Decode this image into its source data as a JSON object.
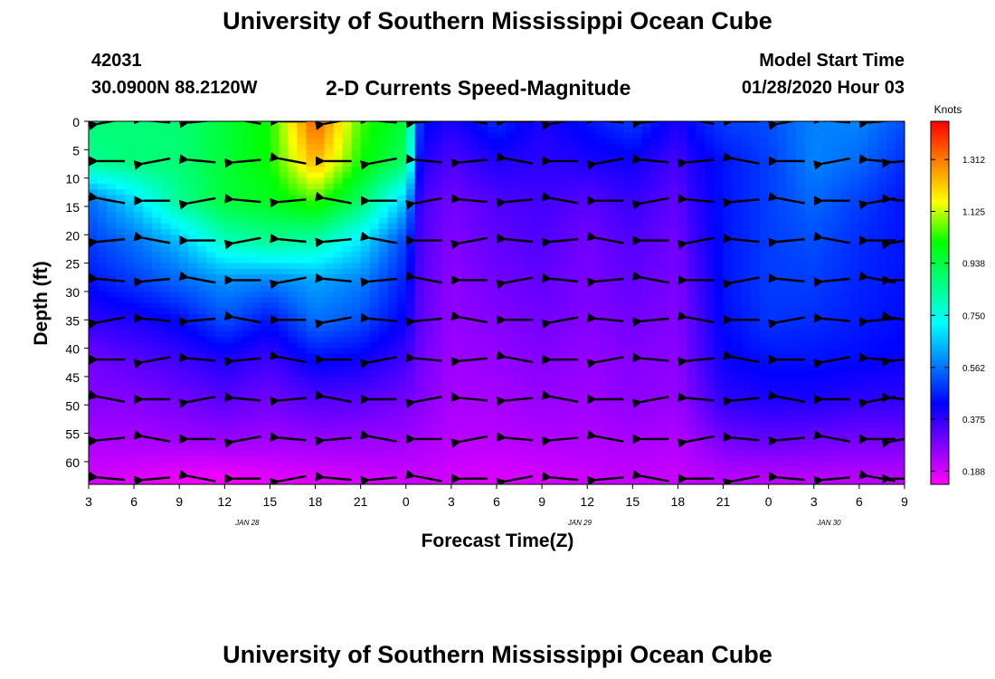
{
  "header": {
    "title": "University of Southern Mississippi Ocean Cube",
    "station_id": "42031",
    "station_coords": "30.0900N 88.2120W",
    "subtitle": "2-D Currents Speed-Magnitude",
    "model_start_label": "Model Start Time",
    "model_start_value": "01/28/2020 Hour 03"
  },
  "footer": {
    "title": "University of Southern Mississippi Ocean Cube"
  },
  "chart_data": {
    "type": "heatmap",
    "title": "2-D Currents Speed-Magnitude",
    "xlabel": "Forecast Time(Z)",
    "ylabel": "Depth (ft)",
    "colorbar_label": "Knots",
    "colorbar_ticks": [
      0.188,
      0.375,
      0.562,
      0.75,
      0.938,
      1.125,
      1.312
    ],
    "colorbar_tick_labels": [
      "0.188",
      "0.375",
      "0.562",
      "0.750",
      "0.938",
      "1.125",
      "1.312"
    ],
    "color_range": [
      0.14,
      1.45
    ],
    "colormap": [
      "#ff00ff",
      "#7f00ff",
      "#0000ff",
      "#0080ff",
      "#00ffff",
      "#00ff80",
      "#00ff00",
      "#ffff00",
      "#ff8000",
      "#ff0000"
    ],
    "x_range": [
      0,
      54
    ],
    "x_tick_labels": [
      "3",
      "6",
      "9",
      "12",
      "15",
      "18",
      "21",
      "0",
      "3",
      "6",
      "9",
      "12",
      "15",
      "18",
      "21",
      "0",
      "3",
      "6",
      "9"
    ],
    "date_labels": [
      {
        "text": "JAN 28",
        "x": 10.5
      },
      {
        "text": "JAN 29",
        "x": 32.5
      },
      {
        "text": "JAN 30",
        "x": 49
      }
    ],
    "y_range": [
      0,
      64
    ],
    "y_ticks": [
      0,
      5,
      10,
      15,
      20,
      25,
      30,
      35,
      40,
      45,
      50,
      55,
      60
    ],
    "arrow_depths": [
      0,
      7,
      14,
      21,
      28,
      35,
      42,
      49,
      56,
      63
    ],
    "arrow_times": [
      1.5,
      4.5,
      7.5,
      10.5,
      13.5,
      16.5,
      19.5,
      22.5,
      25.5,
      28.5,
      31.5,
      34.5,
      37.5,
      40.5,
      43.5,
      46.5,
      49.5,
      52.5,
      54
    ],
    "speed_knots": {
      "times": [
        0,
        3,
        6,
        9,
        12,
        15,
        18,
        21,
        22,
        24,
        27,
        30,
        33,
        36,
        39,
        40,
        42,
        45,
        48,
        51,
        54
      ],
      "depths": [
        0,
        7,
        14,
        21,
        28,
        35,
        42,
        49,
        56,
        63
      ],
      "values": [
        [
          0.88,
          0.88,
          0.88,
          0.95,
          1.02,
          1.35,
          1.05,
          0.95,
          0.45,
          0.4,
          0.48,
          0.4,
          0.45,
          0.5,
          0.4,
          0.45,
          0.5,
          0.52,
          0.58,
          0.58,
          0.52
        ],
        [
          0.85,
          0.88,
          0.88,
          0.95,
          1.02,
          1.25,
          1.02,
          0.9,
          0.4,
          0.34,
          0.4,
          0.38,
          0.4,
          0.42,
          0.35,
          0.4,
          0.45,
          0.5,
          0.58,
          0.55,
          0.48
        ],
        [
          0.55,
          0.68,
          0.85,
          0.95,
          0.98,
          1.05,
          0.9,
          0.65,
          0.35,
          0.3,
          0.34,
          0.36,
          0.33,
          0.37,
          0.32,
          0.38,
          0.45,
          0.5,
          0.55,
          0.5,
          0.45
        ],
        [
          0.5,
          0.56,
          0.65,
          0.8,
          0.85,
          0.82,
          0.7,
          0.5,
          0.34,
          0.28,
          0.32,
          0.34,
          0.3,
          0.34,
          0.3,
          0.36,
          0.45,
          0.5,
          0.52,
          0.48,
          0.45
        ],
        [
          0.45,
          0.5,
          0.55,
          0.6,
          0.58,
          0.62,
          0.58,
          0.46,
          0.33,
          0.27,
          0.3,
          0.32,
          0.29,
          0.32,
          0.29,
          0.34,
          0.45,
          0.5,
          0.5,
          0.47,
          0.45
        ],
        [
          0.38,
          0.4,
          0.44,
          0.52,
          0.45,
          0.56,
          0.52,
          0.42,
          0.32,
          0.26,
          0.28,
          0.3,
          0.28,
          0.3,
          0.28,
          0.33,
          0.44,
          0.49,
          0.48,
          0.46,
          0.44
        ],
        [
          0.3,
          0.33,
          0.36,
          0.4,
          0.36,
          0.44,
          0.42,
          0.36,
          0.3,
          0.25,
          0.26,
          0.28,
          0.26,
          0.28,
          0.27,
          0.32,
          0.42,
          0.45,
          0.45,
          0.44,
          0.42
        ],
        [
          0.28,
          0.28,
          0.3,
          0.33,
          0.3,
          0.34,
          0.33,
          0.3,
          0.28,
          0.24,
          0.24,
          0.26,
          0.25,
          0.27,
          0.26,
          0.3,
          0.38,
          0.4,
          0.4,
          0.38,
          0.38
        ],
        [
          0.24,
          0.24,
          0.25,
          0.26,
          0.25,
          0.26,
          0.26,
          0.25,
          0.24,
          0.22,
          0.22,
          0.23,
          0.23,
          0.24,
          0.23,
          0.25,
          0.3,
          0.32,
          0.31,
          0.3,
          0.3
        ],
        [
          0.19,
          0.18,
          0.16,
          0.15,
          0.17,
          0.18,
          0.19,
          0.2,
          0.2,
          0.19,
          0.18,
          0.19,
          0.2,
          0.21,
          0.2,
          0.21,
          0.22,
          0.22,
          0.22,
          0.22,
          0.22
        ]
      ]
    }
  }
}
